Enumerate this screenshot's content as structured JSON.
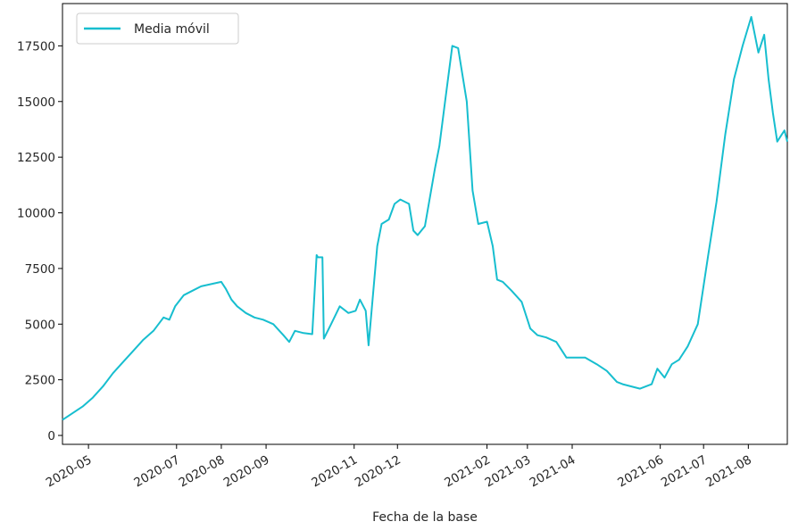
{
  "chart_data": {
    "type": "line",
    "title": "",
    "xlabel": "Fecha de la base",
    "ylabel": "",
    "ylim": [
      -400,
      19400
    ],
    "y_ticks": [
      0,
      2500,
      5000,
      7500,
      10000,
      12500,
      15000,
      17500
    ],
    "x_range": [
      "2020-04-13",
      "2021-08-28"
    ],
    "x_tick_labels": [
      "2020-05",
      "2020-07",
      "2020-08",
      "2020-09",
      "2020-11",
      "2020-12",
      "2021-02",
      "2021-03",
      "2021-04",
      "2021-06",
      "2021-07",
      "2021-08"
    ],
    "x_tick_dates": [
      "2020-05-01",
      "2020-07-01",
      "2020-08-01",
      "2020-09-01",
      "2020-11-01",
      "2020-12-01",
      "2021-02-01",
      "2021-03-01",
      "2021-04-01",
      "2021-06-01",
      "2021-07-01",
      "2021-08-01"
    ],
    "legend_position": "top-left",
    "grid": false,
    "series": [
      {
        "name": "Media móvil",
        "color": "#17becf",
        "x": [
          "2020-04-13",
          "2020-04-20",
          "2020-04-27",
          "2020-05-04",
          "2020-05-11",
          "2020-05-18",
          "2020-05-25",
          "2020-06-01",
          "2020-06-08",
          "2020-06-15",
          "2020-06-22",
          "2020-06-26",
          "2020-06-30",
          "2020-07-06",
          "2020-07-12",
          "2020-07-18",
          "2020-07-25",
          "2020-08-01",
          "2020-08-04",
          "2020-08-08",
          "2020-08-12",
          "2020-08-18",
          "2020-08-24",
          "2020-08-30",
          "2020-09-06",
          "2020-09-13",
          "2020-09-17",
          "2020-09-21",
          "2020-09-27",
          "2020-10-03",
          "2020-10-06",
          "2020-10-07",
          "2020-10-10",
          "2020-10-11",
          "2020-10-16",
          "2020-10-22",
          "2020-10-28",
          "2020-11-02",
          "2020-11-05",
          "2020-11-09",
          "2020-11-11",
          "2020-11-17",
          "2020-11-20",
          "2020-11-25",
          "2020-11-29",
          "2020-12-03",
          "2020-12-09",
          "2020-12-12",
          "2020-12-15",
          "2020-12-20",
          "2020-12-27",
          "2020-12-30",
          "2021-01-03",
          "2021-01-08",
          "2021-01-12",
          "2021-01-18",
          "2021-01-22",
          "2021-01-26",
          "2021-02-01",
          "2021-02-05",
          "2021-02-08",
          "2021-02-12",
          "2021-02-18",
          "2021-02-25",
          "2021-03-03",
          "2021-03-08",
          "2021-03-14",
          "2021-03-21",
          "2021-03-28",
          "2021-04-03",
          "2021-04-10",
          "2021-04-18",
          "2021-04-25",
          "2021-05-02",
          "2021-05-06",
          "2021-05-12",
          "2021-05-18",
          "2021-05-22",
          "2021-05-26",
          "2021-05-30",
          "2021-06-04",
          "2021-06-09",
          "2021-06-14",
          "2021-06-20",
          "2021-06-27",
          "2021-07-04",
          "2021-07-10",
          "2021-07-16",
          "2021-07-22",
          "2021-07-28",
          "2021-08-03",
          "2021-08-08",
          "2021-08-12",
          "2021-08-15",
          "2021-08-18",
          "2021-08-21",
          "2021-08-24",
          "2021-08-26",
          "2021-08-28"
        ],
        "y": [
          700,
          1000,
          1300,
          1700,
          2200,
          2800,
          3300,
          3800,
          4300,
          4700,
          5300,
          5200,
          5800,
          6300,
          6500,
          6700,
          6800,
          6900,
          6600,
          6100,
          5800,
          5500,
          5300,
          5200,
          5000,
          4500,
          4200,
          4700,
          4600,
          4550,
          8100,
          8000,
          8000,
          4350,
          5000,
          5800,
          5500,
          5600,
          6100,
          5600,
          4050,
          8500,
          9500,
          9700,
          10400,
          10600,
          10400,
          9200,
          9000,
          9400,
          12000,
          13000,
          15000,
          17500,
          17400,
          15000,
          11000,
          9500,
          9600,
          8500,
          7000,
          6900,
          6500,
          6000,
          4800,
          4500,
          4400,
          4200,
          3500,
          3500,
          3500,
          3200,
          2900,
          2400,
          2300,
          2200,
          2100,
          2200,
          2300,
          3000,
          2600,
          3200,
          3400,
          4000,
          5000,
          8000,
          10500,
          13500,
          16000,
          17500,
          18800,
          17200,
          18000,
          16000,
          14500,
          13200,
          13500,
          13700,
          13200
        ]
      }
    ]
  }
}
